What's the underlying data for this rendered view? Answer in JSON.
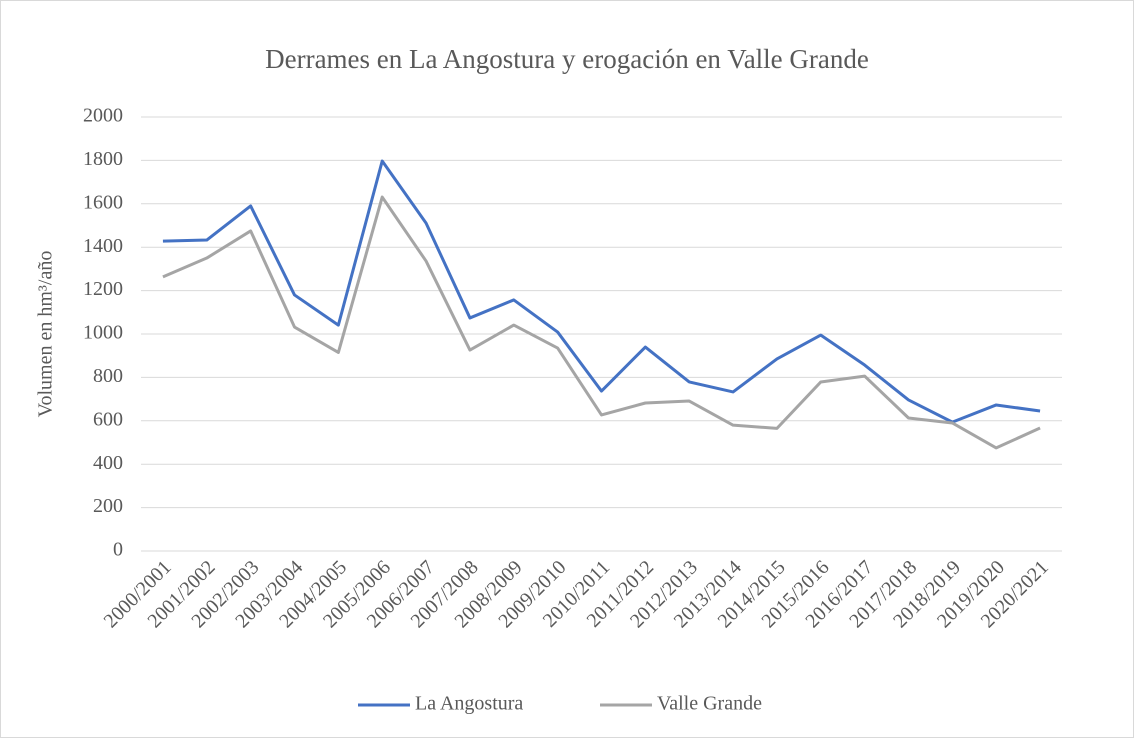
{
  "chart_data": {
    "type": "line",
    "title": "Derrames en La Angostura y erogación en Valle Grande",
    "y_label": "Volumen en hm³/año",
    "categories": [
      "2000/2001",
      "2001/2002",
      "2002/2003",
      "2003/2004",
      "2004/2005",
      "2005/2006",
      "2006/2007",
      "2007/2008",
      "2008/2009",
      "2009/2010",
      "2010/2011",
      "2011/2012",
      "2012/2013",
      "2013/2014",
      "2014/2015",
      "2015/2016",
      "2016/2017",
      "2017/2018",
      "2018/2019",
      "2019/2020",
      "2020/2021"
    ],
    "series": [
      {
        "name": "La Angostura",
        "color": "#4472c4",
        "values": [
          1428,
          1433,
          1590,
          1180,
          1041,
          1797,
          1511,
          1074,
          1157,
          1009,
          737,
          940,
          779,
          733,
          885,
          995,
          857,
          696,
          594,
          673,
          645
        ]
      },
      {
        "name": "Valle Grande",
        "color": "#a5a5a5",
        "values": [
          1263,
          1350,
          1475,
          1032,
          915,
          1631,
          1336,
          926,
          1041,
          935,
          627,
          682,
          691,
          580,
          565,
          779,
          806,
          613,
          590,
          475,
          567
        ]
      }
    ],
    "ylim": [
      0,
      2000
    ],
    "yticks": [
      0,
      200,
      400,
      600,
      800,
      1000,
      1200,
      1400,
      1600,
      1800,
      2000
    ],
    "grid": true,
    "legend": "bottom"
  }
}
